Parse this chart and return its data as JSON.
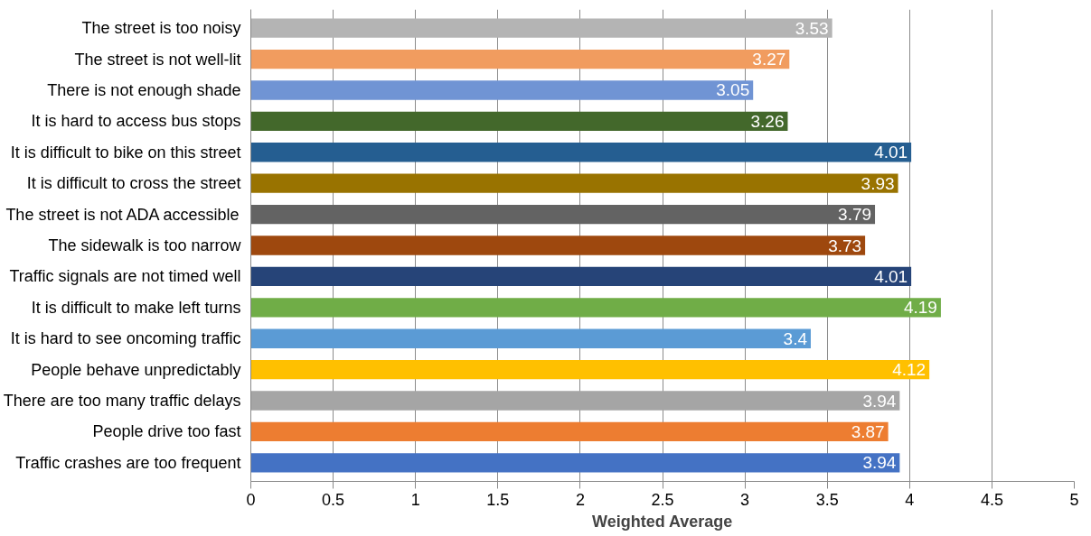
{
  "chart_data": {
    "type": "bar",
    "orientation": "horizontal",
    "xlabel": "Weighted Average",
    "categories": [
      "The street is too noisy",
      "The street is not well-lit",
      "There is not enough shade",
      "It is hard to access bus stops",
      "It is difficult to bike on this street",
      "It is difficult to cross the street",
      "The street is not ADA accessible",
      "The sidewalk is too narrow",
      "Traffic signals are not timed well",
      "It is difficult to make left turns",
      "It is hard to see oncoming traffic",
      "People behave unpredictably",
      "There are too many traffic delays",
      "People drive too fast",
      "Traffic crashes are too frequent"
    ],
    "values": [
      3.53,
      3.27,
      3.05,
      3.26,
      4.01,
      3.93,
      3.79,
      3.73,
      4.01,
      4.19,
      3.4,
      4.12,
      3.94,
      3.87,
      3.94
    ],
    "colors": [
      "#b4b4b4",
      "#f19c5f",
      "#7094d4",
      "#43682b",
      "#255e91",
      "#997300",
      "#636363",
      "#9e480e",
      "#264478",
      "#70ad47",
      "#5b9bd5",
      "#ffc000",
      "#a5a5a5",
      "#ed7d31",
      "#4472c4"
    ],
    "xlim": [
      0,
      5
    ],
    "xticks": [
      0,
      0.5,
      1,
      1.5,
      2,
      2.5,
      3,
      3.5,
      4,
      4.5,
      5
    ],
    "grid": "x",
    "data_labels": true
  }
}
